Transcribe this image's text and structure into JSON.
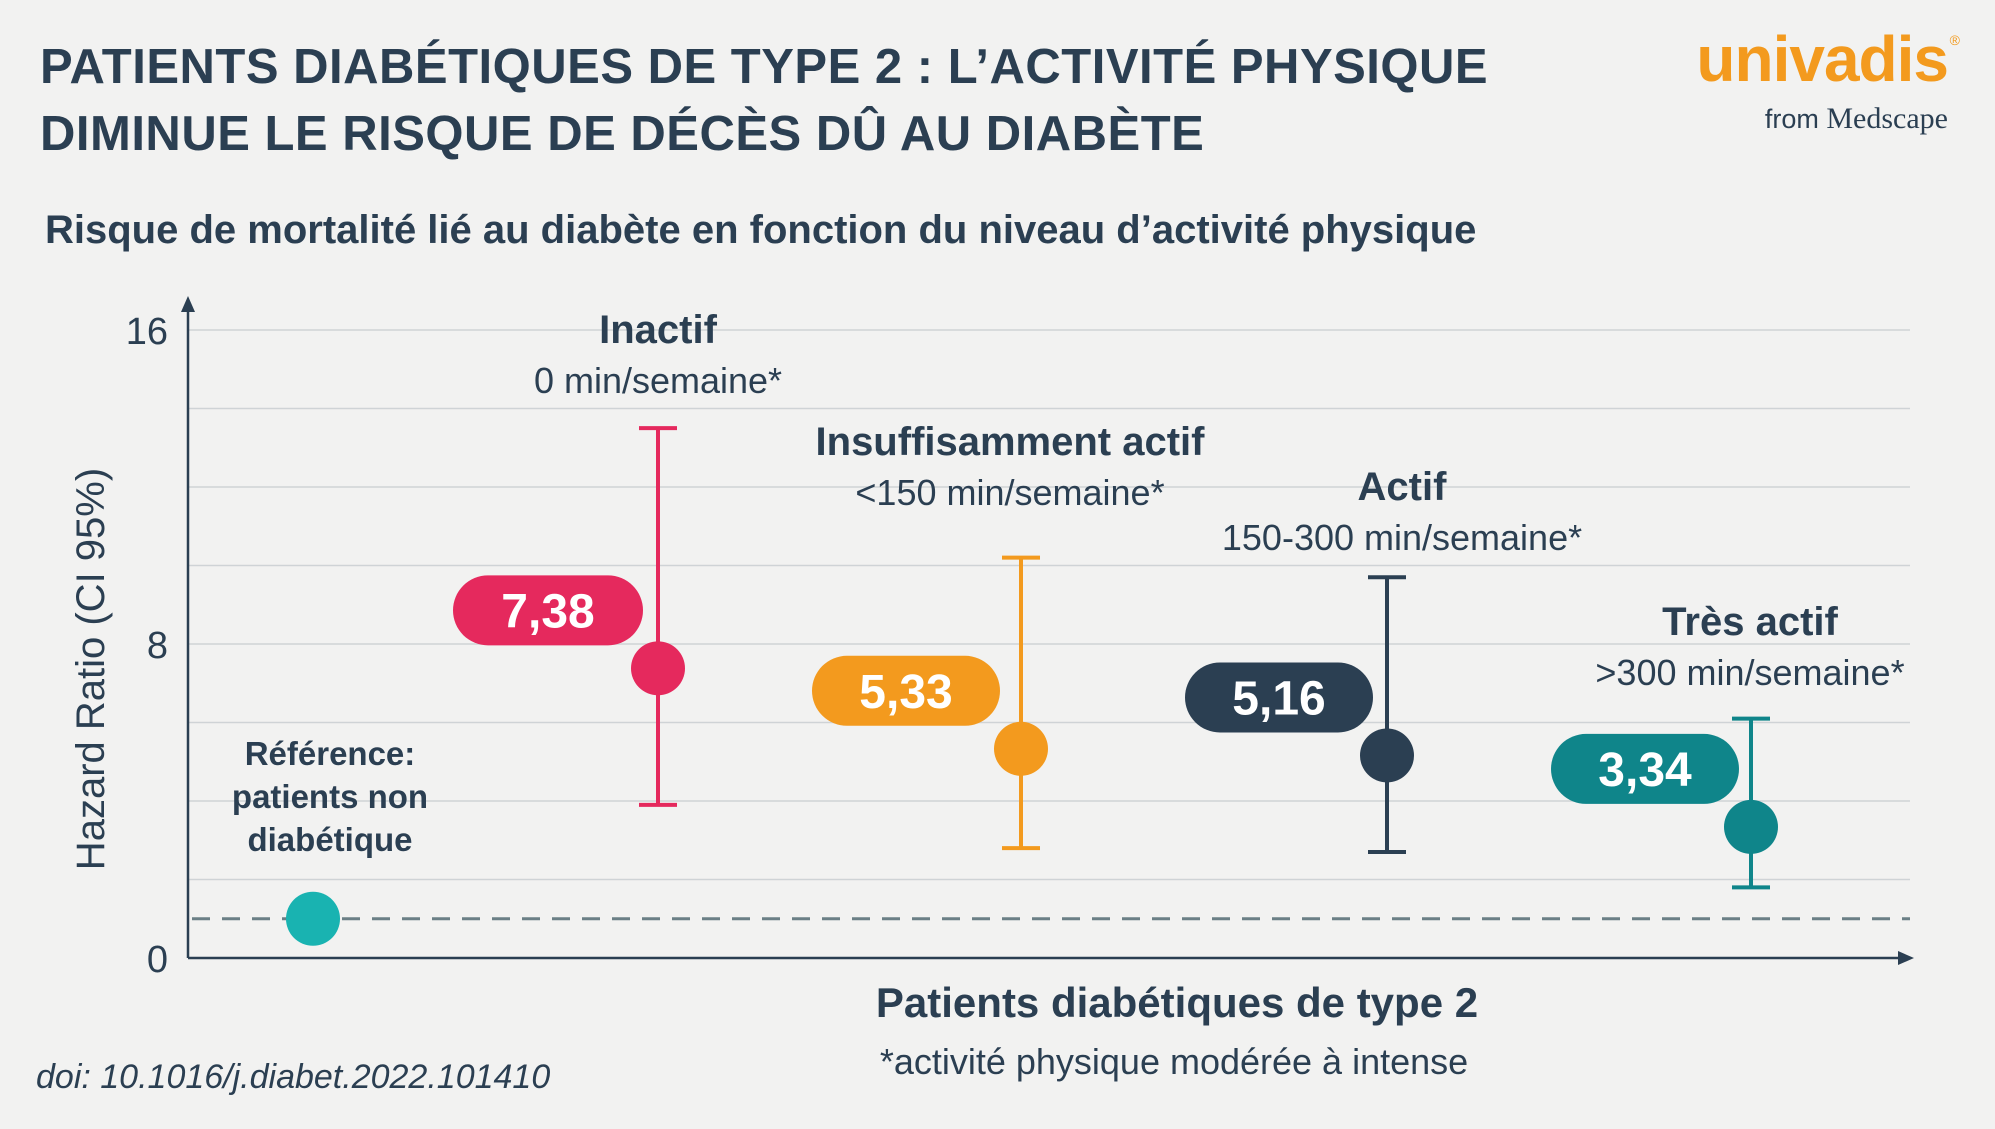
{
  "header": {
    "title_line1": "PATIENTS DIABÉTIQUES DE TYPE 2 : L’ACTIVITÉ PHYSIQUE",
    "title_line2": "DIMINUE LE RISQUE DE DÉCÈS DÛ AU DIABÈTE",
    "subtitle": "Risque de mortalité lié au diabète en fonction du niveau d’activité physique"
  },
  "logo": {
    "brand": "univadis",
    "registered": "®",
    "from_text": "from",
    "partner": "Medscape"
  },
  "footer": {
    "doi": "doi: 10.1016/j.diabet.2022.101410"
  },
  "chart_data": {
    "type": "scatter",
    "title": "Risque de mortalité lié au diabète en fonction du niveau d’activité physique",
    "xlabel": "Patients diabétiques de type 2",
    "xlabel_note": "*activité physique modérée à intense",
    "ylabel": "Hazard Ratio (CI 95%)",
    "ylim": [
      0,
      16
    ],
    "yticks": [
      0,
      8,
      16
    ],
    "grid": true,
    "reference": {
      "label_lines": [
        "Référence:",
        "patients non",
        "diabétique"
      ],
      "value": 1,
      "color": "#19b3b1"
    },
    "groups": [
      {
        "name": "Inactif",
        "detail": "0 min/semaine*",
        "value": 7.38,
        "value_label": "7,38",
        "ci_low": 3.9,
        "ci_high": 13.5,
        "color": "#e5295d"
      },
      {
        "name": "Insuffisamment actif",
        "detail": "<150 min/semaine*",
        "value": 5.33,
        "value_label": "5,33",
        "ci_low": 2.8,
        "ci_high": 10.2,
        "color": "#f39a1e"
      },
      {
        "name": "Actif",
        "detail": "150-300 min/semaine*",
        "value": 5.16,
        "value_label": "5,16",
        "ci_low": 2.7,
        "ci_high": 9.7,
        "color": "#2b3f52"
      },
      {
        "name": "Très actif",
        "detail": ">300 min/semaine*",
        "value": 3.34,
        "value_label": "3,34",
        "ci_low": 1.8,
        "ci_high": 6.1,
        "color": "#0f858a"
      }
    ]
  }
}
